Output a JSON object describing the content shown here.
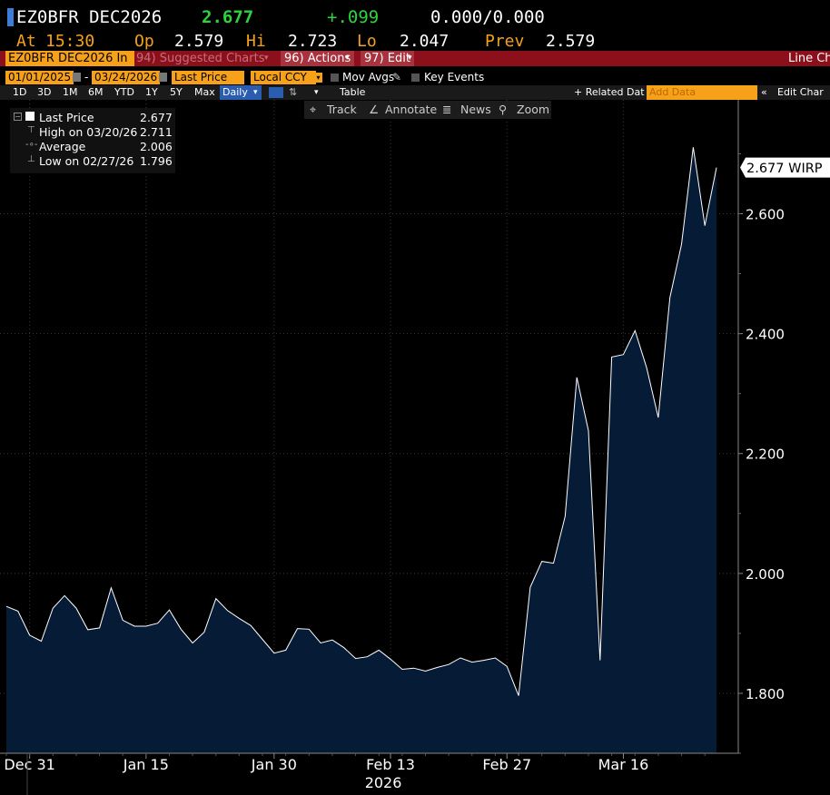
{
  "header": {
    "ticker": "EZ0BFR DEC2026",
    "last": "2.677",
    "change": "+.099",
    "bidask": "0.000/0.000",
    "at_label": "At",
    "at_time": "15:30",
    "op_label": "Op",
    "op_value": "2.579",
    "hi_label": "Hi",
    "hi_value": "2.723",
    "lo_label": "Lo",
    "lo_value": "2.047",
    "prev_label": "Prev",
    "prev_value": "2.579"
  },
  "menubar": {
    "security": "EZ0BFR DEC2026 In",
    "suggested": "94) Suggested Charts",
    "actions": "96) Actions",
    "edit": "97) Edit",
    "title": "Line Ch"
  },
  "controls": {
    "start_date": "01/01/2025",
    "end_date": "03/24/2026",
    "field": "Last Price",
    "currency": "Local CCY",
    "mov_avgs": "Mov Avgs",
    "key_events": "Key Events",
    "periods": [
      "1D",
      "3D",
      "1M",
      "6M",
      "YTD",
      "1Y",
      "5Y",
      "Max"
    ],
    "frequency": "Daily",
    "table": "Table",
    "related": "+ Related Dat",
    "add_data_placeholder": "Add Data",
    "edit_chart": "Edit Char"
  },
  "toolbar": {
    "track": "Track",
    "annotate": "Annotate",
    "news": "News",
    "zoom": "Zoom"
  },
  "legend": {
    "last_label": "Last Price",
    "last_value": "2.677",
    "high_label": "High on 03/20/26",
    "high_value": "2.711",
    "avg_label": "Average",
    "avg_value": "2.006",
    "low_label": "Low on 02/27/26",
    "low_value": "1.796"
  },
  "colors": {
    "fill": "#061b35",
    "line": "#ffffff",
    "menubar": "#8c0f1c",
    "accent_orange": "#f7a11a",
    "up_green": "#2fd33b"
  },
  "chart_data": {
    "type": "area",
    "series_label": "2.677 WIRP",
    "y_ticks": [
      1.8,
      2.0,
      2.2,
      2.4,
      2.6
    ],
    "y_tick_labels": [
      "1.800",
      "2.000",
      "2.200",
      "2.400",
      "2.600"
    ],
    "ylim": [
      1.7,
      2.79
    ],
    "x_tick_labels": [
      "Dec 31",
      "Jan 15",
      "Jan 30",
      "Feb 13",
      "Feb 27",
      "Mar 16"
    ],
    "x_year_label": "2026",
    "x_tick_index": [
      2,
      12,
      23,
      33,
      43,
      53
    ],
    "values": [
      1.945,
      1.937,
      1.897,
      1.887,
      1.942,
      1.963,
      1.942,
      1.906,
      1.909,
      1.976,
      1.922,
      1.912,
      1.912,
      1.917,
      1.939,
      1.907,
      1.884,
      1.902,
      1.958,
      1.938,
      1.925,
      1.913,
      1.89,
      1.867,
      1.872,
      1.908,
      1.907,
      1.884,
      1.889,
      1.876,
      1.858,
      1.861,
      1.872,
      1.857,
      1.84,
      1.842,
      1.837,
      1.843,
      1.848,
      1.859,
      1.852,
      1.855,
      1.859,
      1.845,
      1.796,
      1.977,
      2.02,
      2.017,
      2.095,
      2.327,
      2.238,
      1.855,
      2.361,
      2.365,
      2.405,
      2.343,
      2.26,
      2.46,
      2.549,
      2.711,
      2.58,
      2.677
    ]
  }
}
